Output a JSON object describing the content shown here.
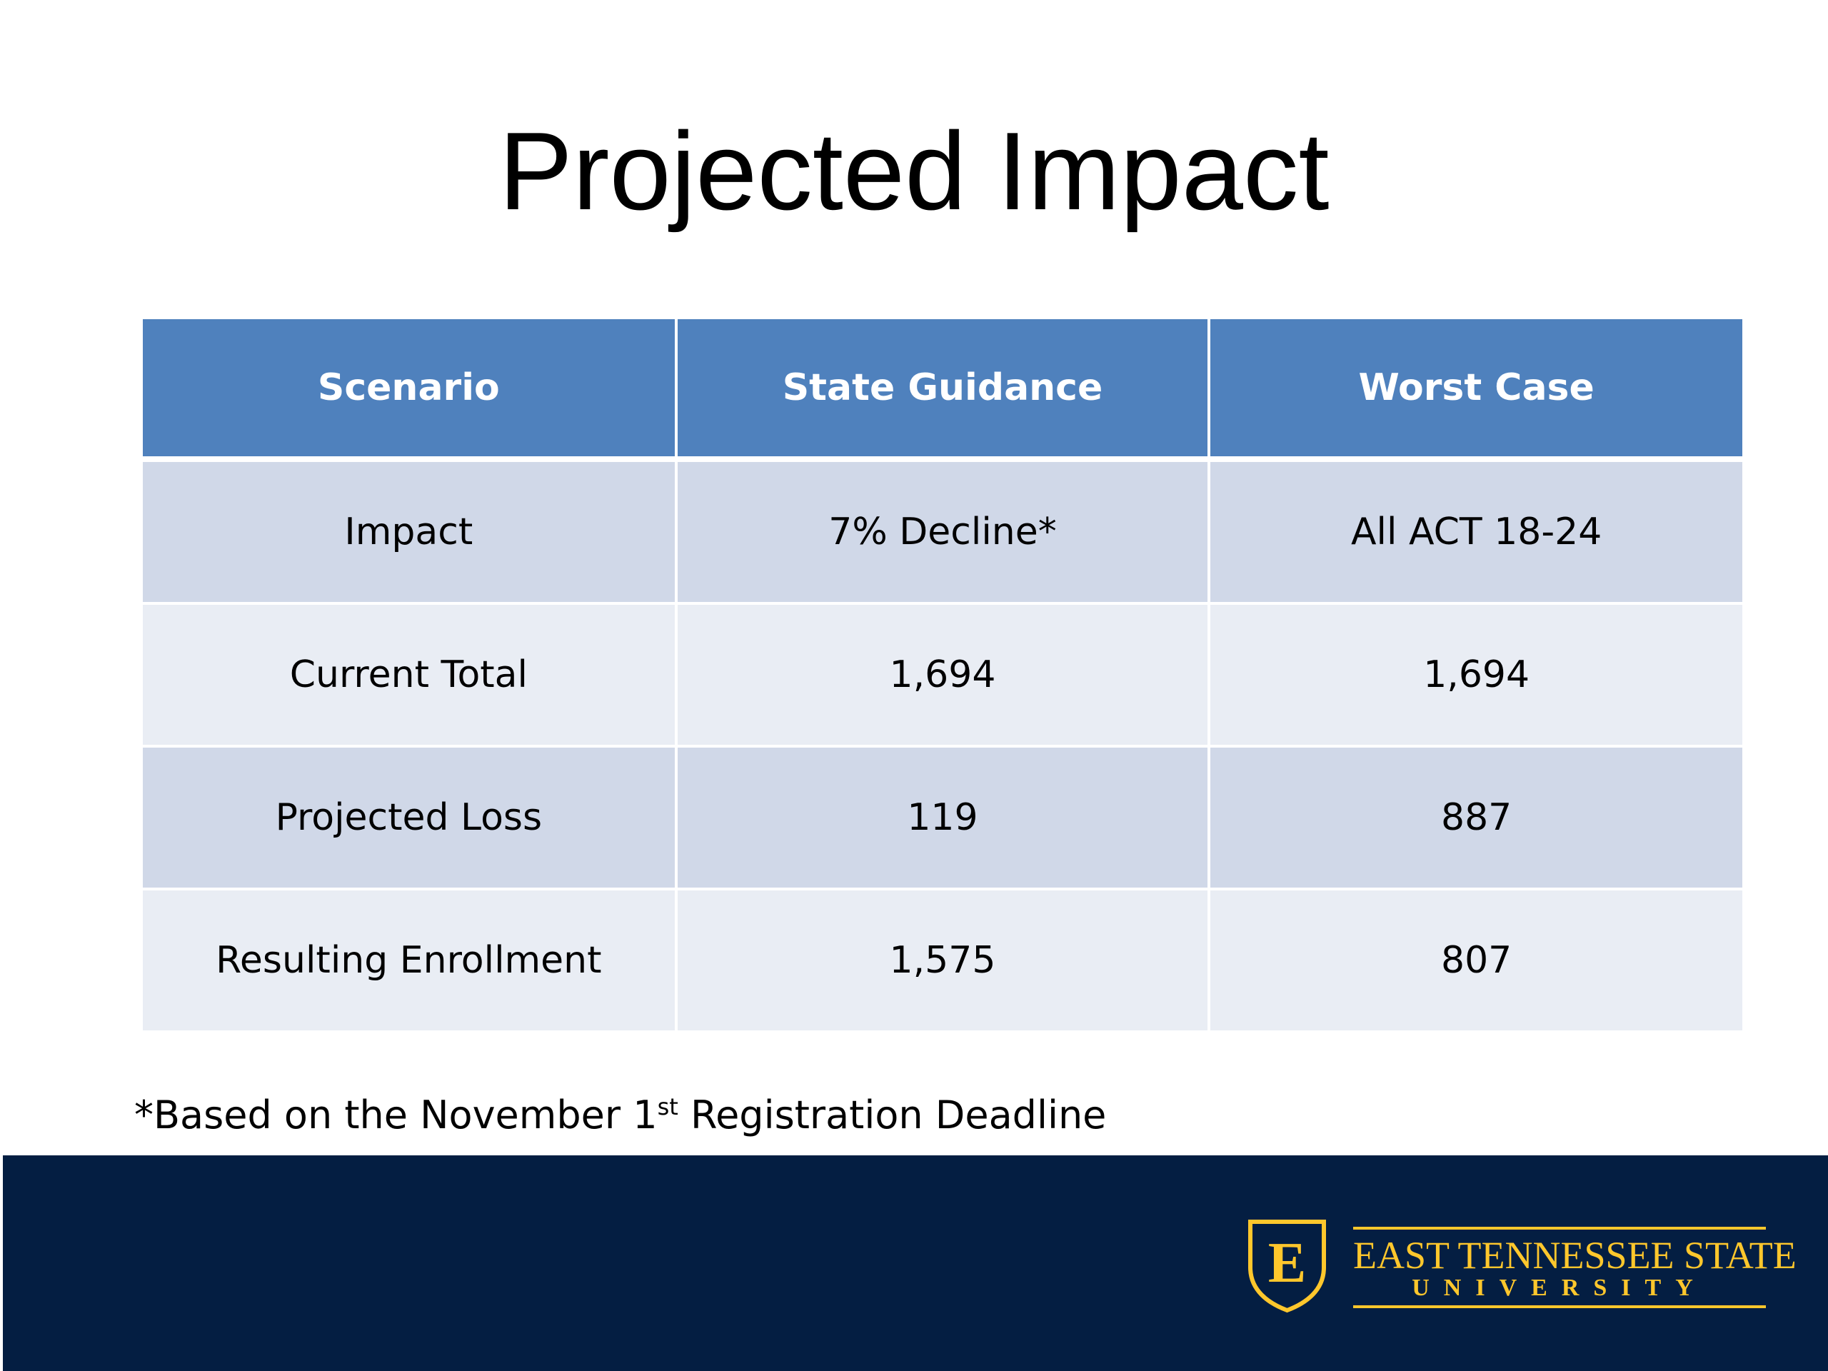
{
  "slide": {
    "title": "Projected Impact"
  },
  "table": {
    "headers": [
      "Scenario",
      "State Guidance",
      "Worst Case"
    ],
    "rows": [
      [
        "Impact",
        "7% Decline*",
        "All ACT 18-24"
      ],
      [
        "Current Total",
        "1,694",
        "1,694"
      ],
      [
        "Projected Loss",
        "119",
        "887"
      ],
      [
        "Resulting Enrollment",
        "1,575",
        "807"
      ]
    ]
  },
  "footnote": {
    "prefix": "*Based on the November 1",
    "superscript": "st",
    "suffix": " Registration Deadline"
  },
  "logo": {
    "monogram": "E",
    "name": "EAST TENNESSEE STATE",
    "sub": "UNIVERSITY",
    "icon": "etsu-shield-icon"
  },
  "colors": {
    "header_blue": "#4f81bd",
    "row_dark": "#d0d8e8",
    "row_light": "#e9edf4",
    "footer_navy": "#041e42",
    "brand_gold": "#ffc72c"
  }
}
